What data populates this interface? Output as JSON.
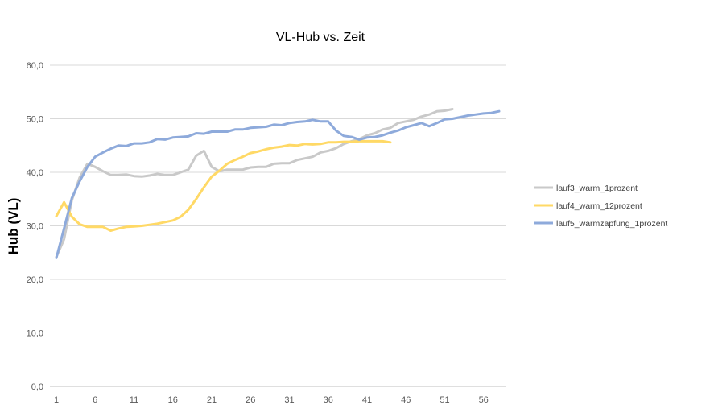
{
  "chart_data": {
    "type": "line",
    "title": "VL-Hub vs. Zeit",
    "xlabel": "",
    "ylabel": "Hub (VL)",
    "ylim": [
      0,
      60
    ],
    "yticks": [
      "0,0",
      "10,0",
      "20,0",
      "30,0",
      "40,0",
      "50,0",
      "60,0"
    ],
    "xticks": [
      1,
      6,
      11,
      16,
      21,
      26,
      31,
      36,
      41,
      46,
      51,
      56
    ],
    "xlim": [
      1,
      58
    ],
    "grid": true,
    "legend_position": "right",
    "series": [
      {
        "name": "lauf3_warm_1prozent",
        "color": "#c9c9c9",
        "values": [
          24.2,
          27.5,
          34.8,
          39.0,
          41.6,
          41.0,
          40.2,
          39.5,
          39.5,
          39.6,
          39.3,
          39.2,
          39.4,
          39.7,
          39.5,
          39.5,
          40.0,
          40.5,
          43.1,
          44.0,
          41.0,
          40.2,
          40.5,
          40.5,
          40.5,
          40.9,
          41.0,
          41.0,
          41.6,
          41.7,
          41.7,
          42.3,
          42.6,
          42.9,
          43.7,
          44.0,
          44.5,
          45.3,
          45.8,
          46.2,
          46.9,
          47.3,
          48.0,
          48.3,
          49.2,
          49.5,
          49.8,
          50.4,
          50.8,
          51.4,
          51.5,
          51.8
        ]
      },
      {
        "name": "lauf4_warm_12prozent",
        "color": "#ffd966",
        "values": [
          31.8,
          34.4,
          31.7,
          30.3,
          29.8,
          29.8,
          29.8,
          29.1,
          29.5,
          29.8,
          29.9,
          30.0,
          30.2,
          30.4,
          30.7,
          31.0,
          31.7,
          33.0,
          35.0,
          37.2,
          39.2,
          40.3,
          41.6,
          42.3,
          42.9,
          43.6,
          43.9,
          44.3,
          44.6,
          44.8,
          45.1,
          45.0,
          45.3,
          45.2,
          45.3,
          45.6,
          45.6,
          45.7,
          45.7,
          45.8,
          45.8,
          45.8,
          45.8,
          45.6
        ]
      },
      {
        "name": "lauf5_warmzapfung_1prozent",
        "color": "#8eaadb",
        "values": [
          24.0,
          29.5,
          35.2,
          38.3,
          41.0,
          42.9,
          43.7,
          44.4,
          45.0,
          44.9,
          45.4,
          45.4,
          45.6,
          46.2,
          46.1,
          46.5,
          46.6,
          46.7,
          47.3,
          47.2,
          47.6,
          47.6,
          47.6,
          48.0,
          48.0,
          48.3,
          48.4,
          48.5,
          48.9,
          48.8,
          49.2,
          49.4,
          49.5,
          49.8,
          49.5,
          49.5,
          47.8,
          46.8,
          46.6,
          46.1,
          46.5,
          46.6,
          46.9,
          47.4,
          47.8,
          48.4,
          48.8,
          49.2,
          48.6,
          49.2,
          49.9,
          50.0,
          50.3,
          50.6,
          50.8,
          51.0,
          51.1,
          51.4
        ]
      }
    ]
  }
}
